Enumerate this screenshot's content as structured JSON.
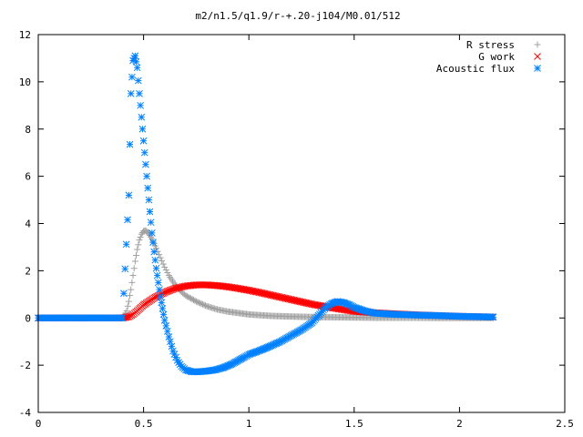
{
  "chart_data": {
    "type": "scatter",
    "title": "m2/n1.5/q1.9/r-+.20-j104/M0.01/512",
    "xlabel": "",
    "ylabel": "",
    "xlim": [
      0,
      2.5
    ],
    "ylim": [
      -4,
      12
    ],
    "x_ticks": [
      0,
      0.5,
      1,
      1.5,
      2,
      2.5
    ],
    "x_tick_labels": [
      "0",
      "0.5",
      "1",
      "1.5",
      "2",
      "2.5"
    ],
    "y_ticks": [
      -4,
      -2,
      0,
      2,
      4,
      6,
      8,
      10,
      12
    ],
    "y_tick_labels": [
      "-4",
      "-2",
      "0",
      "2",
      "4",
      "6",
      "8",
      "10",
      "12"
    ],
    "grid": false,
    "legend_position": "top-right",
    "series": [
      {
        "name": "R stress",
        "marker": "plus",
        "color": "#a0a0a0",
        "x": [
          0.0,
          0.1,
          0.2,
          0.3,
          0.4,
          0.42,
          0.43,
          0.44,
          0.45,
          0.46,
          0.47,
          0.48,
          0.49,
          0.5,
          0.51,
          0.52,
          0.53,
          0.54,
          0.55,
          0.56,
          0.58,
          0.6,
          0.62,
          0.65,
          0.68,
          0.7,
          0.75,
          0.8,
          0.85,
          0.9,
          1.0,
          1.1,
          1.2,
          1.3,
          1.4,
          1.5,
          1.6,
          1.7,
          1.8,
          1.9,
          2.0,
          2.1,
          2.16
        ],
        "y": [
          0.0,
          0.0,
          0.0,
          0.0,
          0.0,
          0.3,
          0.7,
          1.2,
          1.8,
          2.4,
          2.9,
          3.3,
          3.55,
          3.68,
          3.7,
          3.62,
          3.5,
          3.35,
          3.15,
          2.95,
          2.55,
          2.15,
          1.8,
          1.4,
          1.1,
          0.95,
          0.7,
          0.5,
          0.36,
          0.27,
          0.15,
          0.09,
          0.06,
          0.04,
          0.03,
          0.02,
          0.01,
          0.01,
          0.01,
          0.0,
          0.0,
          0.0,
          0.0
        ]
      },
      {
        "name": "G work",
        "marker": "cross",
        "color": "#ff0000",
        "x": [
          0.0,
          0.1,
          0.2,
          0.3,
          0.4,
          0.43,
          0.45,
          0.47,
          0.5,
          0.55,
          0.6,
          0.65,
          0.7,
          0.75,
          0.8,
          0.85,
          0.9,
          0.95,
          1.0,
          1.05,
          1.1,
          1.15,
          1.2,
          1.25,
          1.3,
          1.35,
          1.4,
          1.45,
          1.5,
          1.6,
          1.7,
          1.8,
          1.9,
          2.0,
          2.1,
          2.16
        ],
        "y": [
          0.0,
          0.0,
          0.0,
          0.0,
          0.0,
          0.05,
          0.15,
          0.3,
          0.55,
          0.85,
          1.08,
          1.25,
          1.35,
          1.4,
          1.4,
          1.37,
          1.32,
          1.25,
          1.17,
          1.08,
          0.98,
          0.88,
          0.78,
          0.68,
          0.58,
          0.5,
          0.42,
          0.35,
          0.28,
          0.22,
          0.17,
          0.13,
          0.1,
          0.07,
          0.05,
          0.04
        ]
      },
      {
        "name": "Acoustic flux",
        "marker": "star",
        "color": "#0080ff",
        "x": [
          0.0,
          0.1,
          0.2,
          0.3,
          0.4,
          0.43,
          0.44,
          0.45,
          0.46,
          0.47,
          0.48,
          0.49,
          0.5,
          0.51,
          0.52,
          0.53,
          0.54,
          0.55,
          0.56,
          0.57,
          0.58,
          0.59,
          0.6,
          0.62,
          0.64,
          0.66,
          0.68,
          0.7,
          0.73,
          0.76,
          0.8,
          0.84,
          0.88,
          0.92,
          0.95,
          0.98,
          1.0,
          1.03,
          1.06,
          1.1,
          1.15,
          1.2,
          1.25,
          1.3,
          1.33,
          1.36,
          1.39,
          1.42,
          1.45,
          1.48,
          1.5,
          1.55,
          1.6,
          1.7,
          1.8,
          1.9,
          2.0,
          2.1,
          2.16
        ],
        "y": [
          0.0,
          0.0,
          0.0,
          0.0,
          0.0,
          5.2,
          9.5,
          10.9,
          11.1,
          10.6,
          9.5,
          8.5,
          7.5,
          6.5,
          5.5,
          4.5,
          3.6,
          2.8,
          2.1,
          1.5,
          0.9,
          0.4,
          -0.1,
          -0.8,
          -1.4,
          -1.8,
          -2.05,
          -2.2,
          -2.28,
          -2.28,
          -2.25,
          -2.2,
          -2.1,
          -1.95,
          -1.8,
          -1.65,
          -1.55,
          -1.45,
          -1.35,
          -1.2,
          -1.0,
          -0.75,
          -0.5,
          -0.2,
          0.1,
          0.4,
          0.6,
          0.7,
          0.65,
          0.55,
          0.45,
          0.3,
          0.2,
          0.15,
          0.12,
          0.1,
          0.07,
          0.05,
          0.04
        ]
      }
    ]
  }
}
